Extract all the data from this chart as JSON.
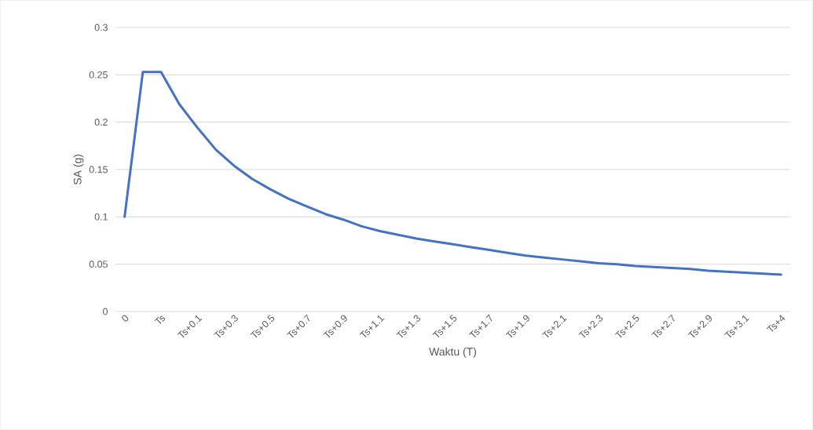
{
  "chart_data": {
    "type": "line",
    "xlabel": "Waktu (T)",
    "ylabel": "SA (g)",
    "categories": [
      "0",
      null,
      "Ts",
      null,
      "Ts+0.1",
      null,
      "Ts+0.3",
      null,
      "Ts+0.5",
      null,
      "Ts+0.7",
      null,
      "Ts+0.9",
      null,
      "Ts+1.1",
      null,
      "Ts+1.3",
      null,
      "Ts+1.5",
      null,
      "Ts+1.7",
      null,
      "Ts+1.9",
      null,
      "Ts+2.1",
      null,
      "Ts+2.3",
      null,
      "Ts+2.5",
      null,
      "Ts+2.7",
      null,
      "Ts+2.9",
      null,
      "Ts+3.1",
      null,
      "Ts+4"
    ],
    "series": [
      {
        "color": "#4472c4",
        "values": [
          0.1,
          0.253,
          0.253,
          0.219,
          0.194,
          0.171,
          0.154,
          0.14,
          0.129,
          0.119,
          0.111,
          0.103,
          0.097,
          0.09,
          0.085,
          0.081,
          0.077,
          0.074,
          0.071,
          0.068,
          0.065,
          0.062,
          0.059,
          0.057,
          0.055,
          0.053,
          0.051,
          0.05,
          0.048,
          0.047,
          0.046,
          0.045,
          0.043,
          0.042,
          0.041,
          0.04,
          0.039
        ]
      }
    ],
    "ylim": [
      0,
      0.3
    ],
    "yticks": [
      0,
      0.05,
      0.1,
      0.15,
      0.2,
      0.25,
      0.3
    ],
    "grid": "y",
    "line_style": "solid"
  }
}
